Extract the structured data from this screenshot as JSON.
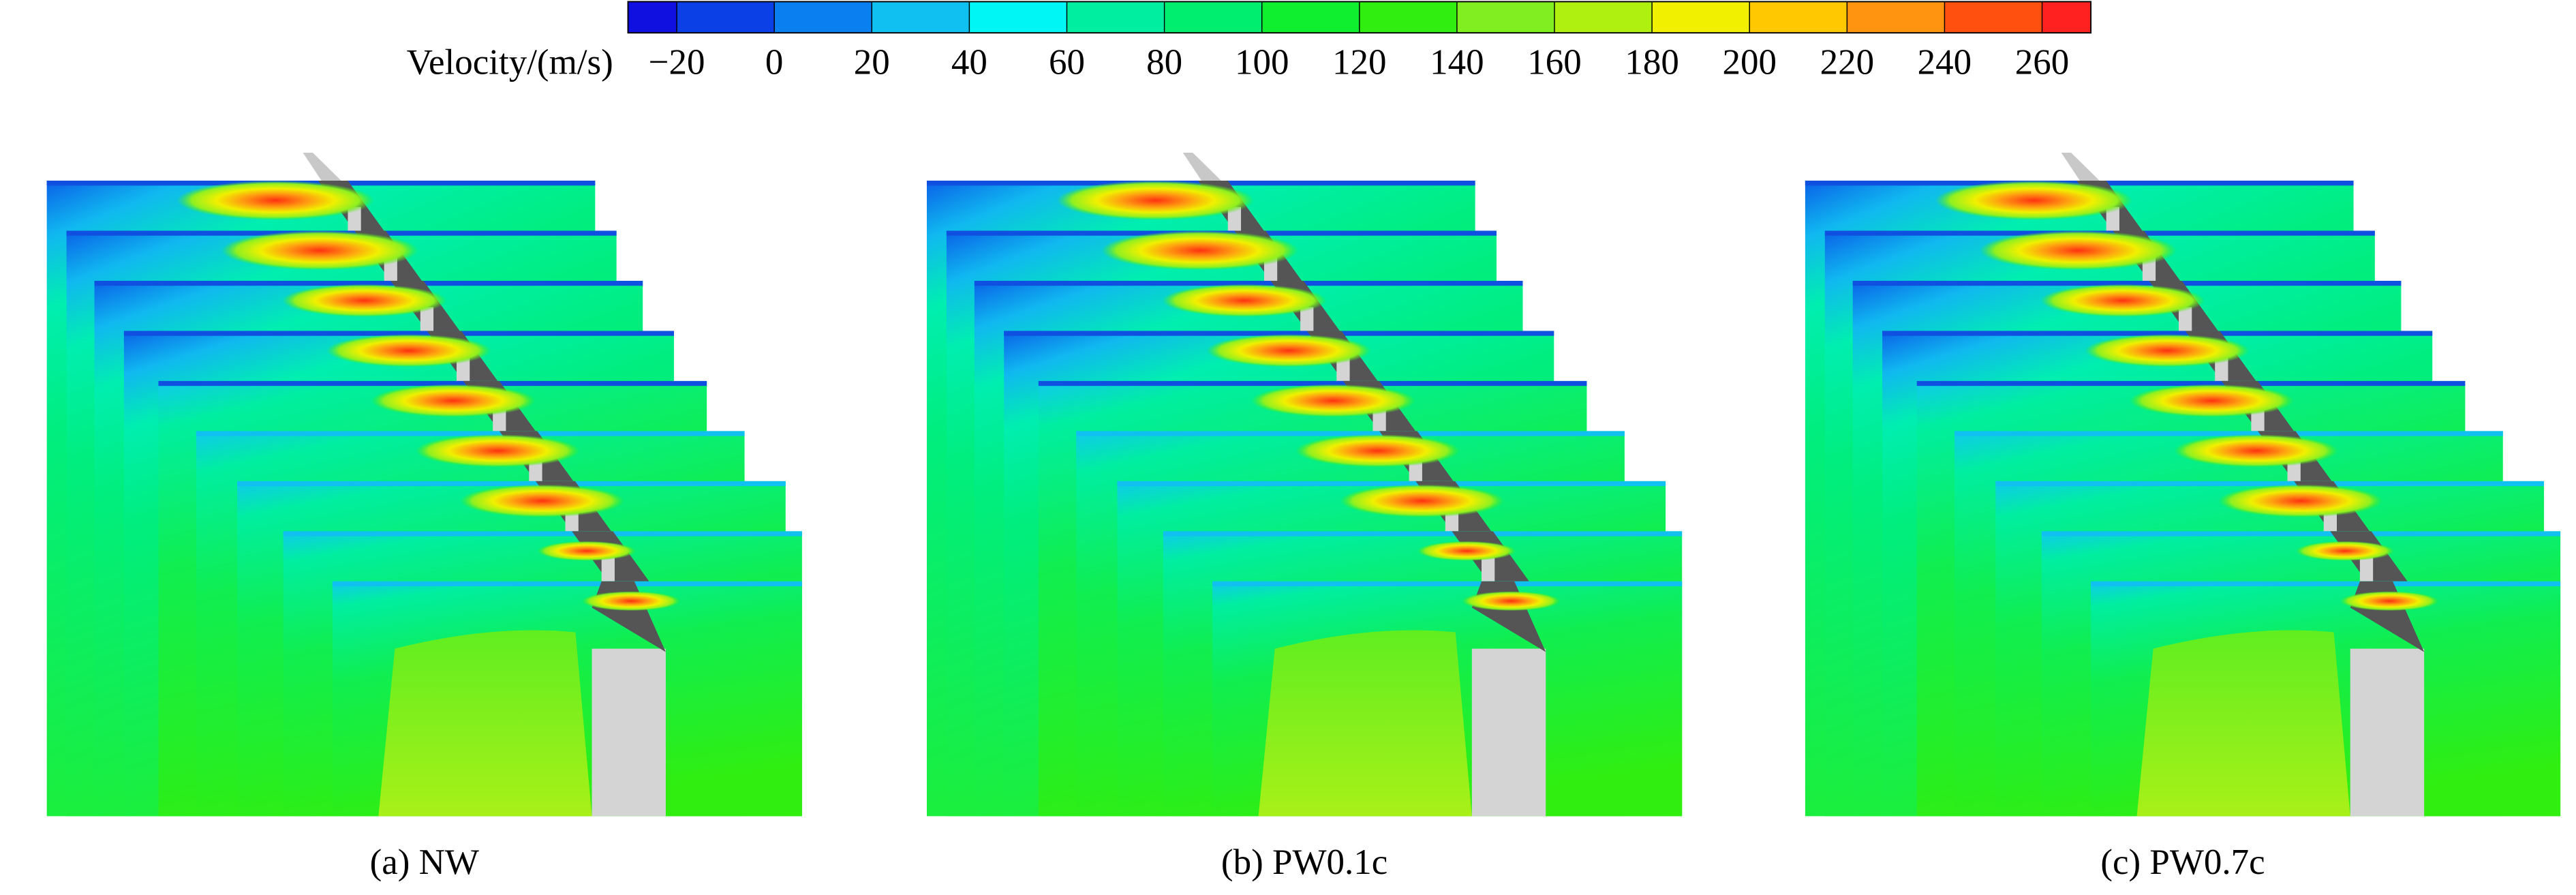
{
  "colorbar": {
    "label": "Velocity/(m/s)",
    "range": [
      -30,
      270
    ],
    "ticks": [
      {
        "value": -20,
        "label": "−20"
      },
      0,
      20,
      40,
      60,
      80,
      100,
      120,
      140,
      160,
      180,
      200,
      220,
      240,
      260
    ],
    "colors": [
      "#1010e0",
      "#0a40e6",
      "#0a80f0",
      "#10c0f0",
      "#00f5f5",
      "#00eea0",
      "#00ee70",
      "#10ee30",
      "#30ee10",
      "#80ee20",
      "#b0f010",
      "#f0f000",
      "#ffc800",
      "#ff9410",
      "#ff5010",
      "#ff2020"
    ]
  },
  "panels": [
    {
      "caption": "(a) NW"
    },
    {
      "caption": "(b) PW0.1c"
    },
    {
      "caption": "(c) PW0.7c"
    }
  ]
}
